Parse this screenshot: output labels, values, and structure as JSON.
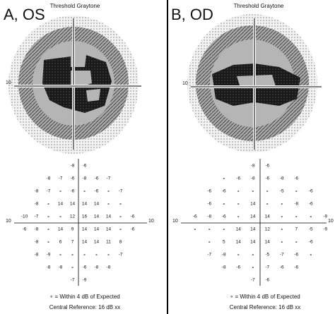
{
  "panels": [
    {
      "label": "A, OS",
      "graytone_title": "Threshold Graytone",
      "axis_label": "10",
      "grid": [
        [
          null,
          null,
          null,
          null,
          "-8",
          "-6",
          null,
          null,
          null,
          null
        ],
        [
          null,
          null,
          "-8",
          "-7",
          "-6",
          "-8",
          "-6",
          "-7",
          null,
          null
        ],
        [
          null,
          "-8",
          "-7",
          "∘",
          "-6",
          "∘",
          "-6",
          "∘",
          "-7",
          null
        ],
        [
          null,
          "-8",
          "∘",
          "14",
          "14",
          "14",
          "14",
          "∘",
          "∘",
          null
        ],
        [
          "-10",
          "-7",
          "∘",
          "∘",
          "12",
          "16",
          "14",
          "14",
          "∘",
          "-6"
        ],
        [
          "-6",
          "-8",
          "∘",
          "14",
          "9",
          "14",
          "14",
          "14",
          "∘",
          "-6"
        ],
        [
          null,
          "-8",
          "∘",
          "6",
          "7",
          "14",
          "14",
          "11",
          "8",
          null
        ],
        [
          null,
          "-8",
          "-9",
          "∘",
          "∘",
          "∘",
          "∘",
          "∘",
          "-7",
          null
        ],
        [
          null,
          null,
          "-8",
          "-8",
          "∘",
          "-6",
          "-8",
          "-8",
          null,
          null
        ],
        [
          null,
          null,
          null,
          null,
          "-7",
          "-9",
          null,
          null,
          null,
          null
        ]
      ],
      "legend": "∘ = Within 4 dB of Expected",
      "reference": "Central Reference: 16 dB xx"
    },
    {
      "label": "B, OD",
      "graytone_title": "Threshold Graytone",
      "axis_label": "10",
      "grid": [
        [
          null,
          null,
          null,
          null,
          "-8",
          "-6",
          null,
          null,
          null,
          null
        ],
        [
          null,
          null,
          "∘",
          "-6",
          "-8",
          "-6",
          "-8",
          "-6",
          null,
          null
        ],
        [
          null,
          "-6",
          "-6",
          "∘",
          "∘",
          "∘",
          "-5",
          "∘",
          "-6",
          null
        ],
        [
          null,
          "-6",
          "∘",
          "∘",
          "14",
          "∘",
          "∘",
          "-8",
          "-6",
          null
        ],
        [
          "-6",
          "-8",
          "-6",
          "∘",
          "14",
          "14",
          "∘",
          "∘",
          "∘",
          "-9"
        ],
        [
          "∘",
          "∘",
          "∘",
          "14",
          "14",
          "12",
          "∘",
          "7",
          "-5",
          "-9"
        ],
        [
          null,
          "∘",
          "5",
          "14",
          "14",
          "14",
          "∘",
          "∘",
          "-6",
          null
        ],
        [
          null,
          "-7",
          "-8",
          "∘",
          "∘",
          "-5",
          "-7",
          "-6",
          "∘",
          null
        ],
        [
          null,
          null,
          "-8",
          "-6",
          "∘",
          "-7",
          "-6",
          "-6",
          null,
          null
        ],
        [
          null,
          null,
          null,
          null,
          "-7",
          "-6",
          null,
          null,
          null,
          null
        ]
      ],
      "legend": "∘ = Within 4 dB of Expected",
      "reference": "Central Reference: 16 dB xx"
    }
  ]
}
